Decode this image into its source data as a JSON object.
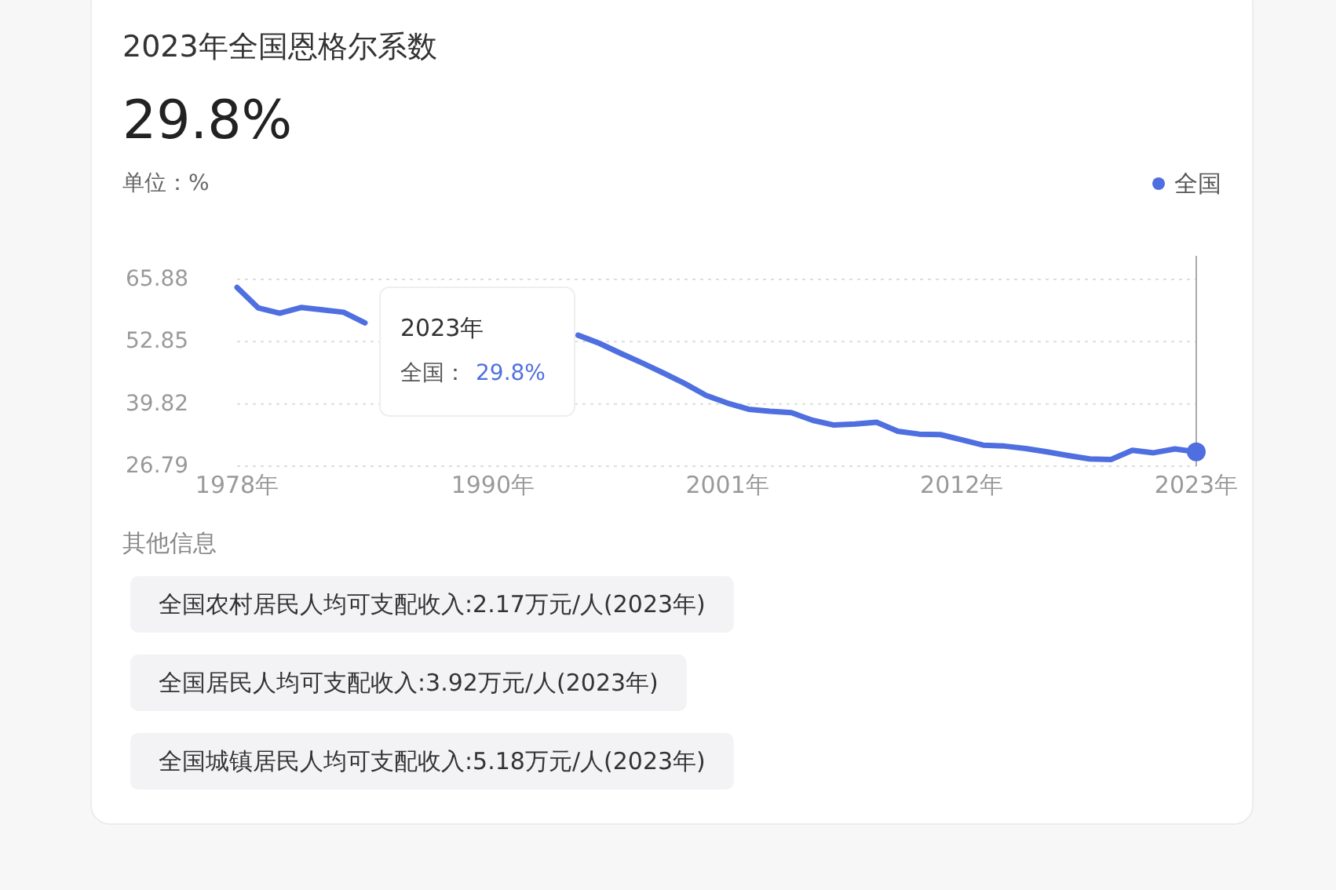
{
  "chart_data": {
    "type": "line",
    "title": "2023年全国恩格尔系数",
    "subtitle": "29.8%",
    "ylabel": "单位：%",
    "x": [
      1978,
      1979,
      1980,
      1981,
      1982,
      1983,
      1984,
      1994,
      1995,
      1996,
      1997,
      1998,
      1999,
      2000,
      2001,
      2002,
      2003,
      2004,
      2005,
      2006,
      2007,
      2008,
      2009,
      2010,
      2011,
      2012,
      2013,
      2014,
      2015,
      2016,
      2017,
      2018,
      2019,
      2020,
      2021,
      2022,
      2023
    ],
    "series": [
      {
        "name": "全国",
        "color": "#4f6fe0",
        "values": [
          64.2,
          59.9,
          58.8,
          60.0,
          59.5,
          59.0,
          56.8,
          54.2,
          52.5,
          50.4,
          48.4,
          46.3,
          44.1,
          41.6,
          40.0,
          38.7,
          38.3,
          38.0,
          36.4,
          35.4,
          35.6,
          36.0,
          34.1,
          33.5,
          33.4,
          32.3,
          31.2,
          31.0,
          30.5,
          29.8,
          29.0,
          28.3,
          28.2,
          30.1,
          29.6,
          30.4,
          29.8
        ]
      },
      {
        "type": "scatter",
        "color": "#4f6fe0",
        "x": [
          2023
        ],
        "values": [
          29.8
        ],
        "marker": "circle"
      }
    ],
    "xlim": [
      1978,
      2023
    ],
    "xticks": [
      {
        "value": 1978,
        "label": "1978年"
      },
      {
        "value": 1990,
        "label": "1990年"
      },
      {
        "value": 2001,
        "label": "2001年"
      },
      {
        "value": 2012,
        "label": "2012年"
      },
      {
        "value": 2023,
        "label": "2023年"
      }
    ],
    "ylim": [
      26.79,
      65.88
    ],
    "yticks": [
      26.79,
      39.82,
      52.85,
      65.88
    ],
    "grid": "y",
    "legend": "top right",
    "marker": "none",
    "line_style": "solid",
    "ref_lines": [
      {
        "axis": "x",
        "value": 2023,
        "color": "#aaaaaa",
        "line_style": "solid"
      }
    ],
    "annotations": [
      "2023年",
      "全国：",
      "29.8%",
      "其他信息",
      "全国农村居民人均可支配收入:2.17万元/人(2023年)",
      "全国居民人均可支配收入:3.92万元/人(2023年)",
      "全国城镇居民人均可支配收入:5.18万元/人(2023年)"
    ]
  }
}
